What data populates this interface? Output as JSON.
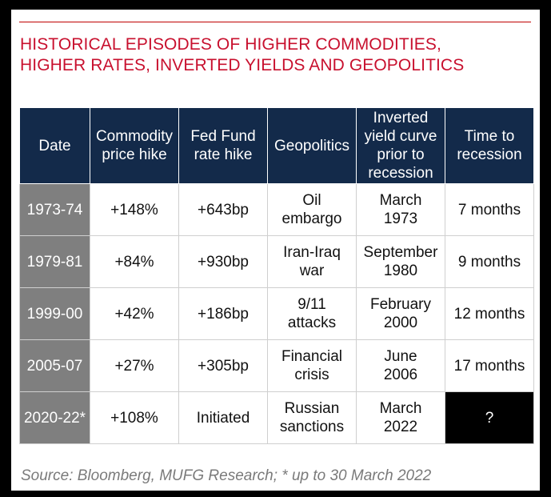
{
  "title": {
    "line1": "HISTORICAL EPISODES OF HIGHER COMMODITIES,",
    "line2": "HIGHER RATES, INVERTED YIELDS AND GEOPOLITICS"
  },
  "colors": {
    "title": "#c8102e",
    "header_bg": "#132a4a",
    "date_bg": "#7f7f7f",
    "unknown_bg": "#000000"
  },
  "table": {
    "headers": [
      [
        "Date"
      ],
      [
        "Commodity",
        "price hike"
      ],
      [
        "Fed Fund",
        "rate hike"
      ],
      [
        "Geopolitics"
      ],
      [
        "Inverted",
        "yield curve",
        "prior to",
        "recession"
      ],
      [
        "Time to",
        "recession"
      ]
    ],
    "rows": [
      {
        "date": "1973-74",
        "commodity": "+148%",
        "fed": "+643bp",
        "geo": [
          "Oil",
          "embargo"
        ],
        "inverted": [
          "March",
          "1973"
        ],
        "time": "7 months"
      },
      {
        "date": "1979-81",
        "commodity": "+84%",
        "fed": "+930bp",
        "geo": [
          "Iran-Iraq",
          "war"
        ],
        "inverted": [
          "September",
          "1980"
        ],
        "time": "9 months"
      },
      {
        "date": "1999-00",
        "commodity": "+42%",
        "fed": "+186bp",
        "geo": [
          "9/11",
          "attacks"
        ],
        "inverted": [
          "February",
          "2000"
        ],
        "time": "12 months"
      },
      {
        "date": "2005-07",
        "commodity": "+27%",
        "fed": "+305bp",
        "geo": [
          "Financial",
          "crisis"
        ],
        "inverted": [
          "June",
          "2006"
        ],
        "time": "17 months"
      },
      {
        "date": "2020-22*",
        "commodity": "+108%",
        "fed": "Initiated",
        "geo": [
          "Russian",
          "sanctions"
        ],
        "inverted": [
          "March",
          "2022"
        ],
        "time": "?"
      }
    ]
  },
  "source": "Source: Bloomberg, MUFG Research; * up to 30 March 2022"
}
